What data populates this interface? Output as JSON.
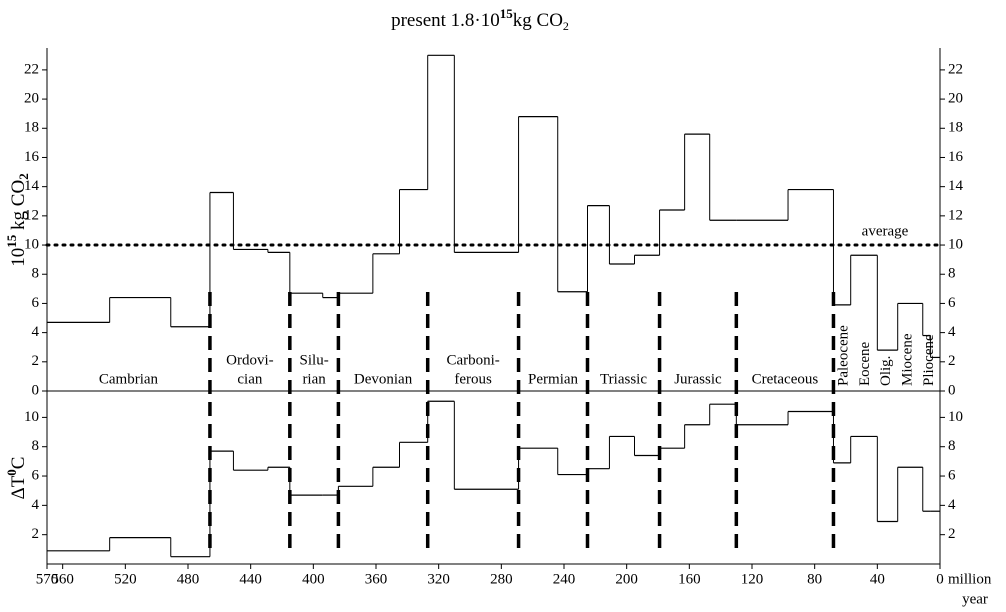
{
  "chart_data": {
    "type": "step",
    "title": [
      "present 1.8·10",
      "15",
      "kg CO",
      "2"
    ],
    "x": [
      570,
      530,
      491,
      466,
      451,
      429,
      415,
      394,
      384,
      362,
      345,
      327,
      310,
      269,
      244,
      225,
      211,
      195,
      179,
      163,
      147,
      130,
      97,
      68,
      57,
      40,
      27,
      11,
      6,
      0
    ],
    "xlim": [
      570,
      0
    ],
    "xticks": [
      570,
      560,
      520,
      480,
      440,
      400,
      360,
      320,
      280,
      240,
      200,
      160,
      120,
      80,
      40,
      0
    ],
    "xlabel": [
      "million",
      "year"
    ],
    "panels": [
      {
        "ylabel": [
          "10",
          "15",
          " kg CO",
          "2"
        ],
        "ylim": [
          0,
          23.5
        ],
        "yticks": [
          0,
          2,
          4,
          6,
          8,
          10,
          12,
          14,
          16,
          18,
          20,
          22
        ],
        "series": [
          {
            "color": "#000000",
            "values": [
              4.7,
              6.4,
              4.4,
              13.6,
              9.7,
              9.5,
              6.7,
              6.4,
              6.7,
              9.4,
              13.8,
              23,
              9.5,
              18.8,
              6.8,
              12.7,
              8.7,
              9.3,
              12.4,
              17.6,
              11.7,
              11.7,
              13.8,
              5.9,
              9.3,
              2.8,
              6.0,
              3.8,
              2.3
            ]
          }
        ],
        "average": {
          "value": 10,
          "label": "average"
        }
      },
      {
        "ylabel": [
          "ΔT",
          "0",
          "C"
        ],
        "ylim": [
          0,
          11.8
        ],
        "yticks": [
          2,
          4,
          6,
          8,
          10
        ],
        "series": [
          {
            "color": "#000000",
            "values": [
              0.9,
              1.8,
              0.5,
              7.7,
              6.4,
              6.6,
              4.7,
              4.7,
              5.3,
              6.6,
              8.3,
              11.1,
              5.1,
              7.9,
              6.1,
              6.5,
              8.7,
              7.4,
              7.9,
              9.5,
              10.9,
              9.5,
              10.4,
              6.9,
              8.7,
              2.9,
              6.6,
              3.6,
              3.6
            ]
          }
        ]
      }
    ],
    "boundaries": [
      466,
      415,
      384,
      327,
      269,
      225,
      179,
      130,
      68
    ],
    "periods": [
      [
        "Cambrian"
      ],
      [
        "Ordovi-",
        "cian"
      ],
      [
        "Silu-",
        "rian"
      ],
      [
        "Devonian"
      ],
      [
        "Carboni-",
        "ferous"
      ],
      [
        "Permian"
      ],
      [
        "Triassic"
      ],
      [
        "Jurassic"
      ],
      [
        "Cretaceous"
      ]
    ],
    "epochs": [
      "Paleocene",
      "Eocene",
      "Olig.",
      "Miocene",
      "Pliocene"
    ]
  }
}
